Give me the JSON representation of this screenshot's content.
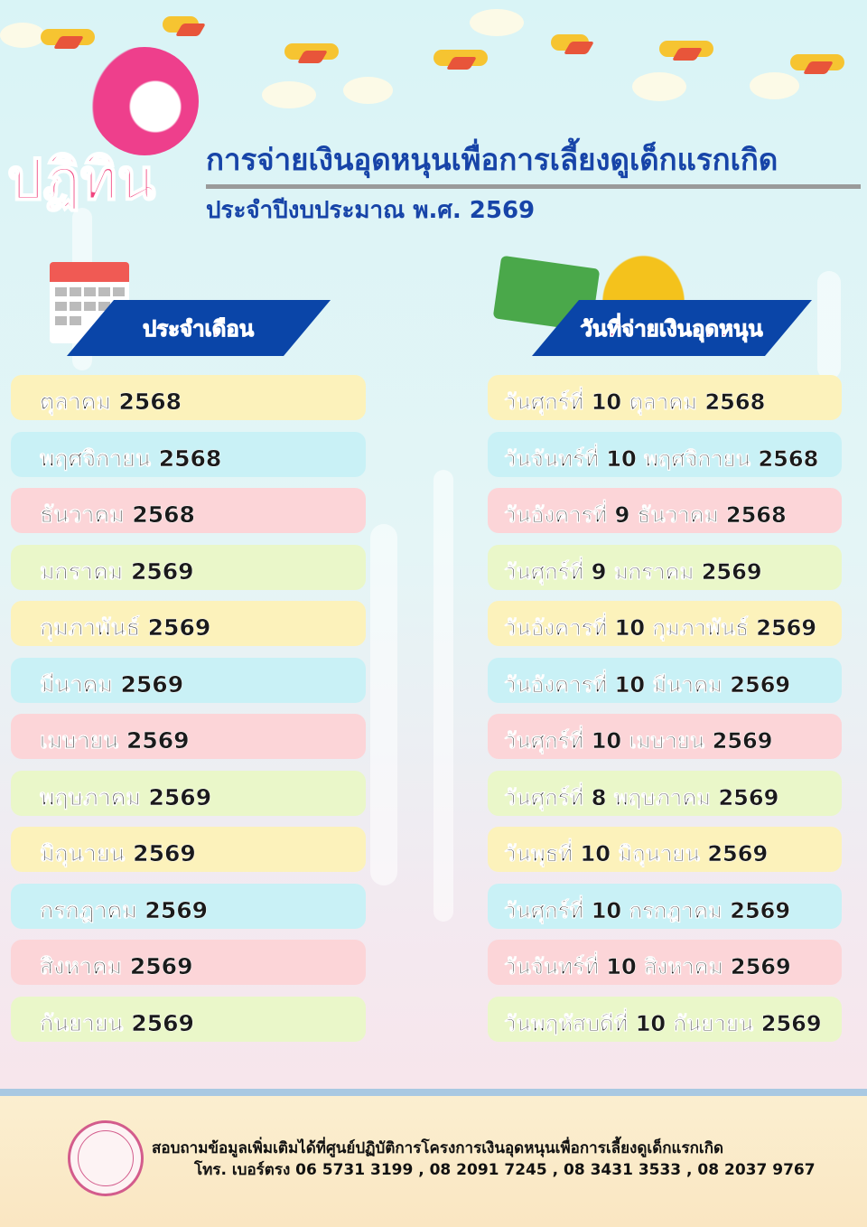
{
  "header": {
    "logo_text": "ปฏิทิน",
    "title": "การจ่ายเงินอุดหนุนเพื่อการเลี้ยงดูเด็กแรกเกิด",
    "subtitle": "ประจำปีงบประมาณ พ.ศ. 2569"
  },
  "columns": {
    "month": "ประจำเดือน",
    "pay_date": "วันที่จ่ายเงินอุดหนุน"
  },
  "colors": {
    "accent": "#1744a8",
    "banner": "#0a45a8",
    "logo": "#f0457f",
    "row_colors": [
      "#fcf2bb",
      "#c9f1f6",
      "#fcd5d8",
      "#eaf7c9"
    ]
  },
  "schedule": [
    {
      "month": "ตุลาคม 2568",
      "date": "วันศุกร์ที่ 10 ตุลาคม 2568"
    },
    {
      "month": "พฤศจิกายน 2568",
      "date": "วันจันทร์ที่ 10 พฤศจิกายน 2568"
    },
    {
      "month": "ธันวาคม 2568",
      "date": "วันอังคารที่ 9 ธันวาคม 2568"
    },
    {
      "month": "มกราคม 2569",
      "date": "วันศุกร์ที่ 9 มกราคม 2569"
    },
    {
      "month": "กุมภาพันธ์ 2569",
      "date": "วันอังคารที่ 10 กุมภาพันธ์ 2569"
    },
    {
      "month": "มีนาคม 2569",
      "date": "วันอังคารที่ 10 มีนาคม 2569"
    },
    {
      "month": "เมษายน 2569",
      "date": "วันศุกร์ที่ 10 เมษายน 2569"
    },
    {
      "month": "พฤษภาคม 2569",
      "date": "วันศุกร์ที่ 8 พฤษภาคม 2569"
    },
    {
      "month": "มิถุนายน 2569",
      "date": "วันพุธที่ 10 มิถุนายน 2569"
    },
    {
      "month": "กรกฎาคม 2569",
      "date": "วันศุกร์ที่ 10 กรกฎาคม 2569"
    },
    {
      "month": "สิงหาคม 2569",
      "date": "วันจันทร์ที่ 10 สิงหาคม 2569"
    },
    {
      "month": "กันยายน 2569",
      "date": "วันพฤหัสบดีที่ 10 กันยายน 2569"
    }
  ],
  "footer": {
    "line1": "สอบถามข้อมูลเพิ่มเติมได้ที่ศูนย์ปฏิบัติการโครงการเงินอุดหนุนเพื่อการเลี้ยงดูเด็กแรกเกิด",
    "line2": "โทร. เบอร์ตรง 06 5731 3199 , 08 2091 7245 , 08 3431 3533 , 08 2037 9767"
  }
}
